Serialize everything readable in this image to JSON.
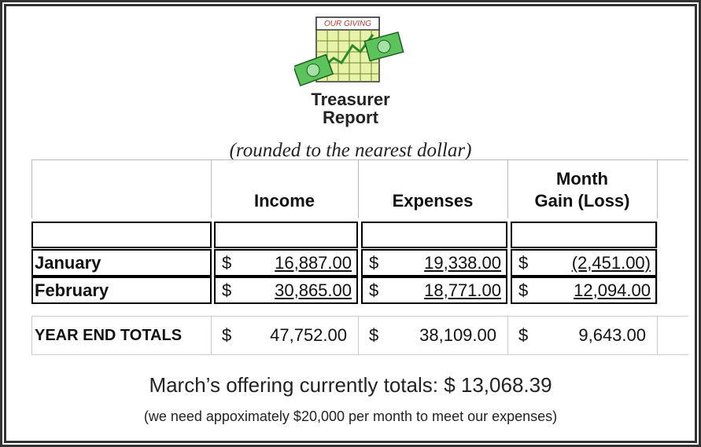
{
  "header": {
    "icon_text": "OUR GIVING",
    "title_line1": "Treasurer",
    "title_line2": "Report",
    "subtitle": "(rounded to the nearest dollar)"
  },
  "table": {
    "columns": [
      [
        "Income"
      ],
      [
        "Expenses"
      ],
      [
        "Month",
        "Gain (Loss)"
      ]
    ],
    "rows": [
      {
        "label": "January",
        "cells": [
          {
            "currency": "$",
            "amount": "16,887.00"
          },
          {
            "currency": "$",
            "amount": "19,338.00"
          },
          {
            "currency": "$",
            "amount": "(2,451.00)"
          }
        ]
      },
      {
        "label": "February",
        "cells": [
          {
            "currency": "$",
            "amount": "30,865.00"
          },
          {
            "currency": "$",
            "amount": "18,771.00"
          },
          {
            "currency": "$",
            "amount": "12,094.00"
          }
        ]
      }
    ],
    "totals": {
      "label": "YEAR END TOTALS",
      "cells": [
        {
          "currency": "$",
          "amount": "47,752.00"
        },
        {
          "currency": "$",
          "amount": "38,109.00"
        },
        {
          "currency": "$",
          "amount": "9,643.00"
        }
      ]
    }
  },
  "footer": {
    "line1": "March’s offering currently totals: $ 13,068.39",
    "line2": "(we need appoximately $20,000 per month to meet our expenses)"
  }
}
